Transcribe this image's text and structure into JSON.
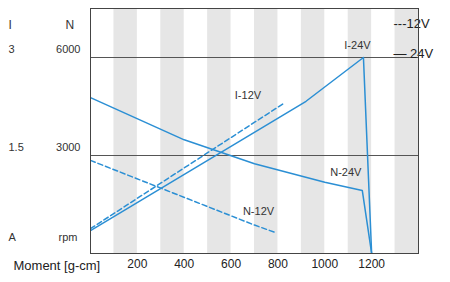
{
  "chart_data": {
    "type": "line",
    "x_label": "Moment [g-cm]",
    "y_label": "N",
    "y_unit": "rpm",
    "y2_label": "I",
    "y2_unit": "A",
    "xlim": [
      0,
      1400
    ],
    "xticks": [
      200,
      400,
      600,
      800,
      1000,
      1200
    ],
    "ylim": [
      0,
      7500
    ],
    "yticks": [
      3000,
      6000
    ],
    "y2lim": [
      0,
      3.75
    ],
    "y2ticks": [
      1.5,
      3
    ],
    "grid": true,
    "annotations": [
      "---12V",
      "— 24V"
    ],
    "series": [
      {
        "name": "I-24V",
        "color": "#2b8fd4",
        "line_style": "solid",
        "axis": "y2",
        "x": [
          0,
          920,
          1165,
          1200
        ],
        "values": [
          0.35,
          2.33,
          3.0,
          0
        ]
      },
      {
        "name": "I-12V",
        "color": "#2b8fd4",
        "line_style": "dashed",
        "axis": "y2",
        "x": [
          0,
          830
        ],
        "values": [
          0.38,
          2.31
        ]
      },
      {
        "name": "N-24V",
        "color": "#2b8fd4",
        "line_style": "solid",
        "x": [
          0,
          400,
          700,
          1000,
          1160,
          1200
        ],
        "values": [
          4770,
          3480,
          2750,
          2180,
          1930,
          0
        ]
      },
      {
        "name": "N-12V",
        "color": "#2b8fd4",
        "line_style": "dashed",
        "x": [
          0,
          700,
          790
        ],
        "values": [
          2850,
          870,
          640
        ]
      }
    ]
  }
}
